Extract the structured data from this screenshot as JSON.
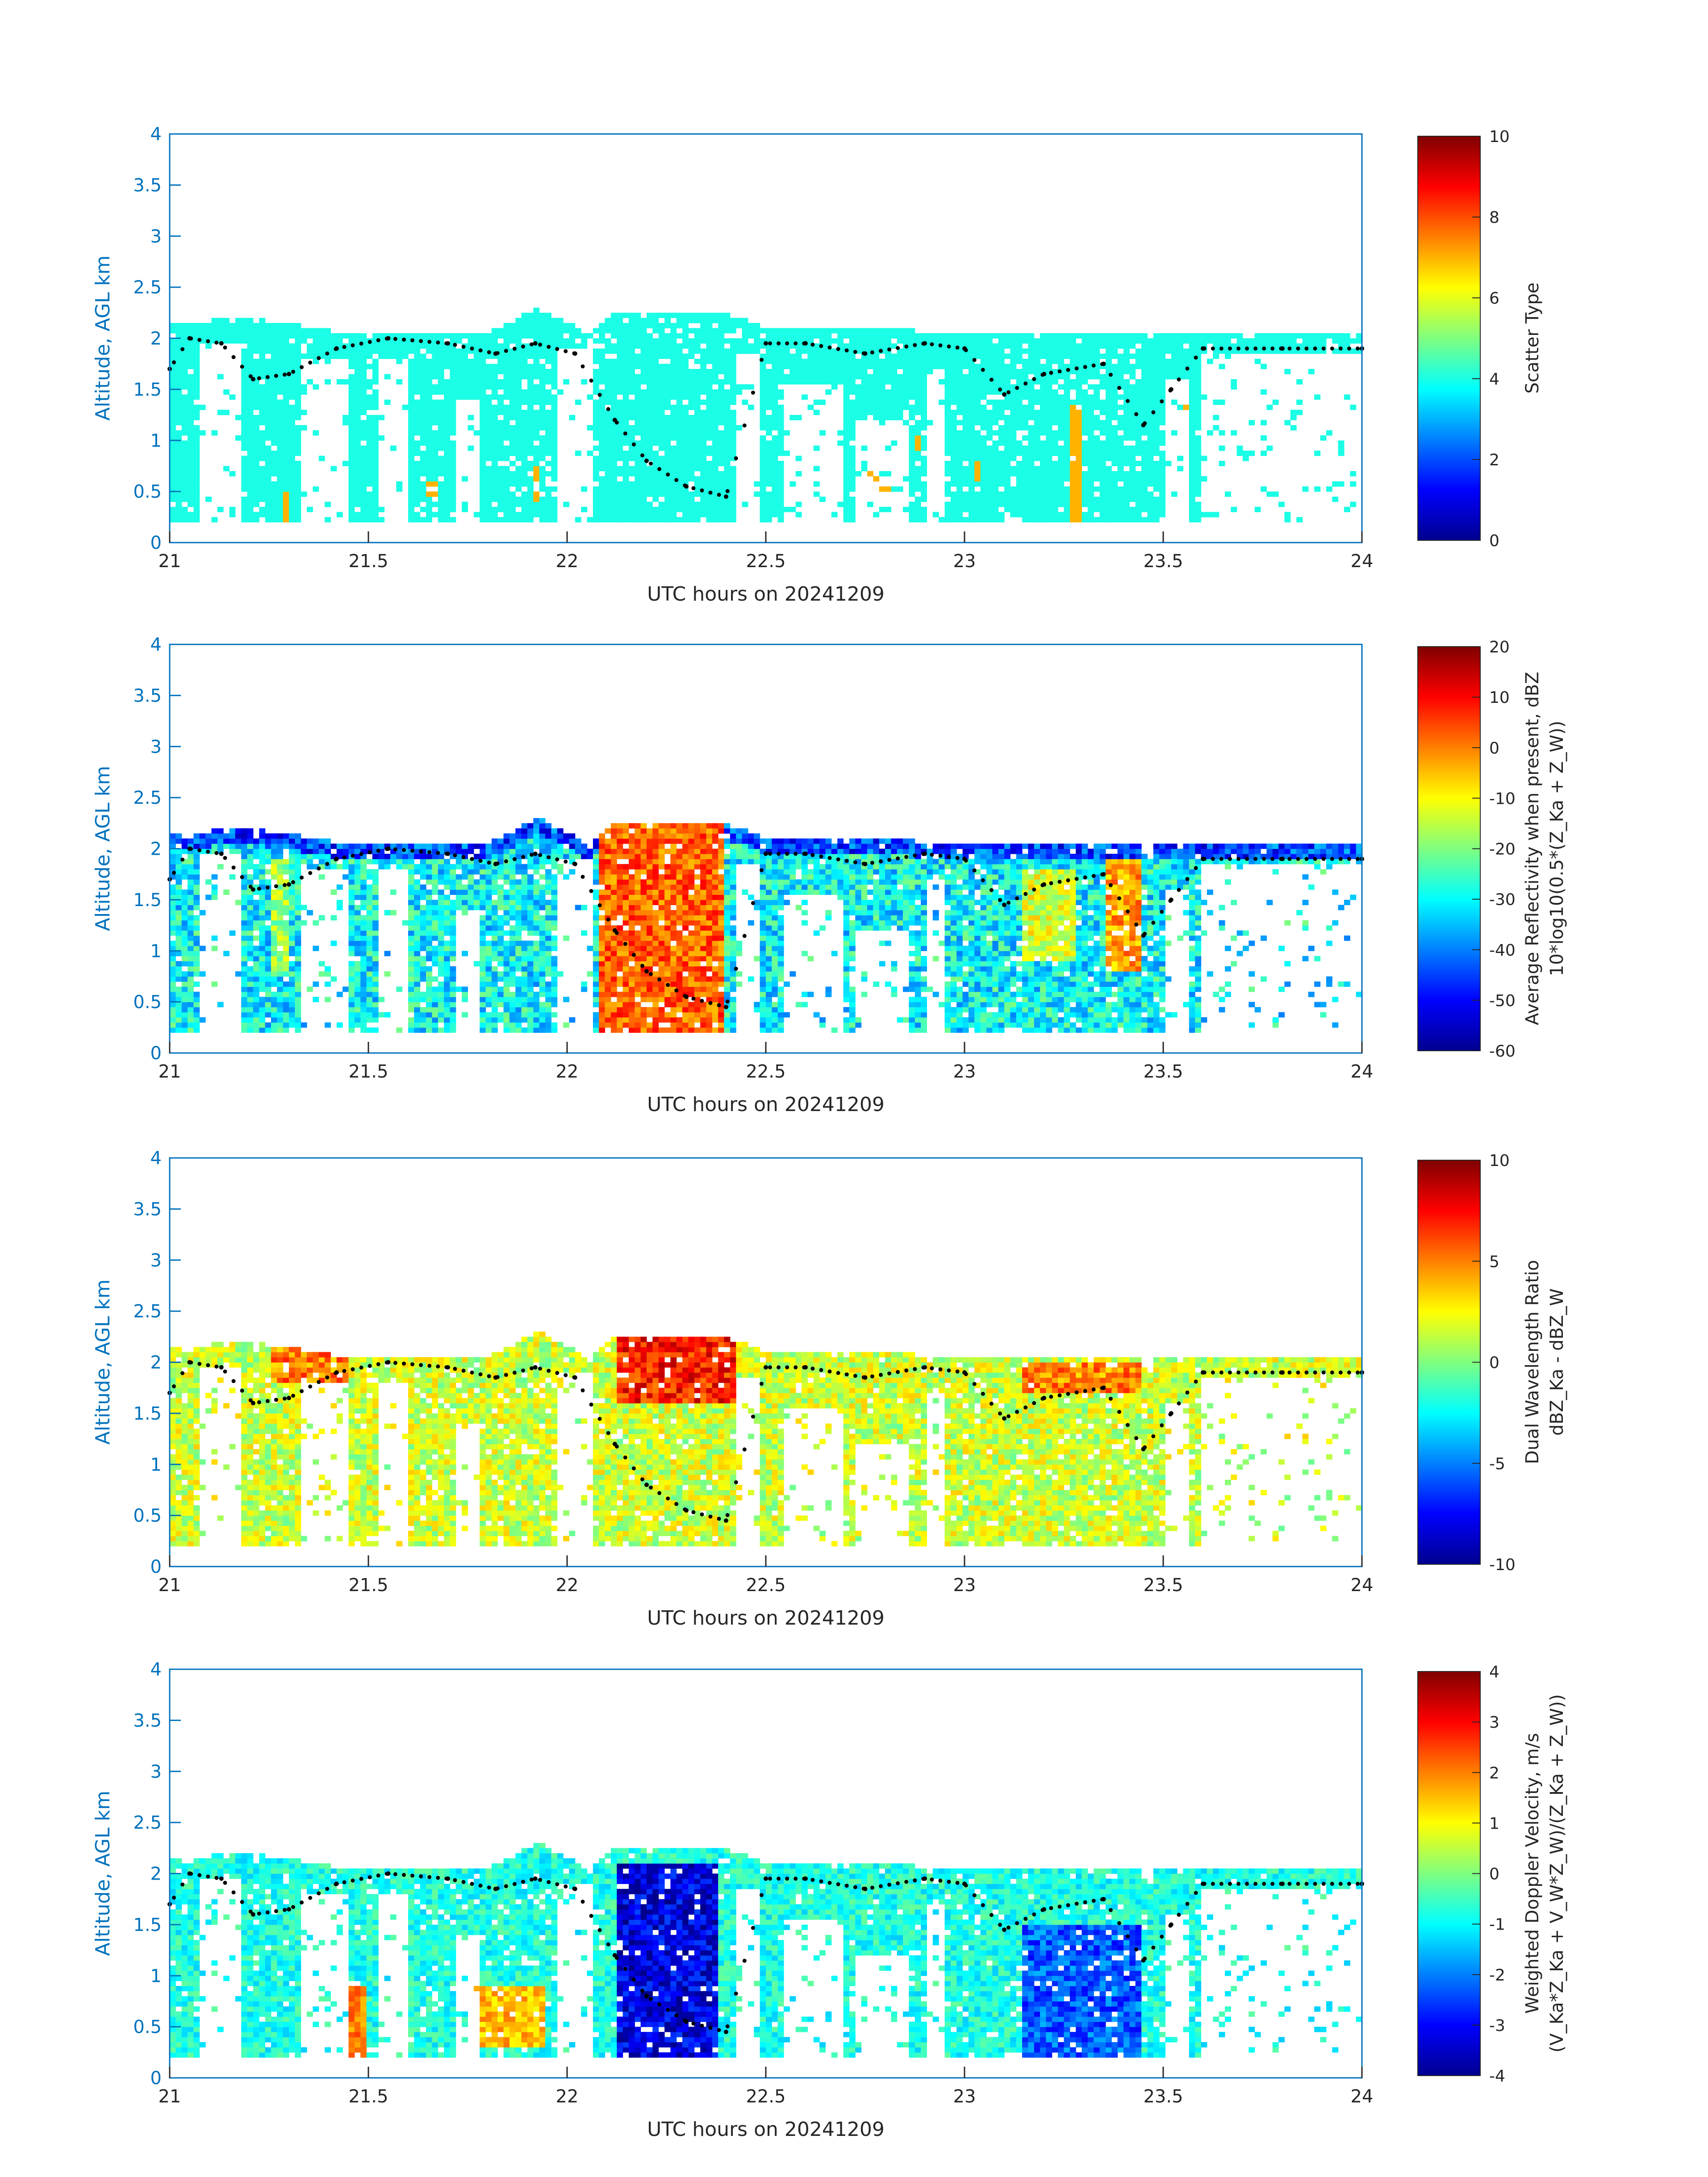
{
  "figure": {
    "axis_color": "#0072BD",
    "colormap": "jet",
    "panels": [
      {
        "id": "scatter_type",
        "xlabel": "UTC hours on 20241209",
        "ylabel": "Altitude, AGL km",
        "xticks": [
          "21",
          "21.5",
          "22",
          "22.5",
          "23",
          "23.5",
          "24"
        ],
        "yticks": [
          "0",
          "0.5",
          "1",
          "1.5",
          "2",
          "2.5",
          "3",
          "3.5",
          "4"
        ],
        "colorbar_label_lines": [
          "Scatter Type"
        ],
        "colorbar_ticks": [
          "0",
          "2",
          "4",
          "6",
          "8",
          "10"
        ]
      },
      {
        "id": "avg_reflectivity",
        "xlabel": "UTC hours on 20241209",
        "ylabel": "Altitude, AGL km",
        "xticks": [
          "21",
          "21.5",
          "22",
          "22.5",
          "23",
          "23.5",
          "24"
        ],
        "yticks": [
          "0",
          "0.5",
          "1",
          "1.5",
          "2",
          "2.5",
          "3",
          "3.5",
          "4"
        ],
        "colorbar_label_lines": [
          "Average Reflectivity when present, dBZ",
          "10*log10(0.5*(Z_Ka + Z_W))"
        ],
        "colorbar_ticks": [
          "-60",
          "-50",
          "-40",
          "-30",
          "-20",
          "-10",
          "0",
          "10",
          "20"
        ]
      },
      {
        "id": "dual_wavelength_ratio",
        "xlabel": "UTC hours on 20241209",
        "ylabel": "Altitude, AGL km",
        "xticks": [
          "21",
          "21.5",
          "22",
          "22.5",
          "23",
          "23.5",
          "24"
        ],
        "yticks": [
          "0",
          "0.5",
          "1",
          "1.5",
          "2",
          "2.5",
          "3",
          "3.5",
          "4"
        ],
        "colorbar_label_lines": [
          "Dual Wavelength Ratio",
          "dBZ_Ka - dBZ_W"
        ],
        "colorbar_ticks": [
          "-10",
          "-5",
          "0",
          "5",
          "10"
        ]
      },
      {
        "id": "weighted_doppler_velocity",
        "xlabel": "UTC hours on 20241209",
        "ylabel": "Altitude, AGL km",
        "xticks": [
          "21",
          "21.5",
          "22",
          "22.5",
          "23",
          "23.5",
          "24"
        ],
        "yticks": [
          "0",
          "0.5",
          "1",
          "1.5",
          "2",
          "2.5",
          "3",
          "3.5",
          "4"
        ],
        "colorbar_label_lines": [
          "Weighted Doppler Velocity, m/s",
          "(V_Ka*Z_Ka + V_W*Z_W)/(Z_Ka + Z_W))"
        ],
        "colorbar_ticks": [
          "-4",
          "-3",
          "-2",
          "-1",
          "0",
          "1",
          "2",
          "3",
          "4"
        ]
      }
    ]
  },
  "chart_data": [
    {
      "type": "heatmap",
      "xlabel": "UTC hours on 20241209",
      "ylabel": "Altitude, AGL km",
      "xlim": [
        21,
        24
      ],
      "ylim": [
        0,
        4
      ],
      "clim": [
        0,
        10
      ],
      "colorbar_label": "Scatter Type",
      "grid": false,
      "cloud_top_km": [
        [
          21.0,
          2.15
        ],
        [
          21.2,
          2.2
        ],
        [
          21.45,
          2.05
        ],
        [
          21.65,
          2.05
        ],
        [
          21.8,
          2.05
        ],
        [
          21.93,
          2.3
        ],
        [
          22.05,
          2.05
        ],
        [
          22.12,
          2.25
        ],
        [
          22.4,
          2.25
        ],
        [
          22.5,
          2.1
        ],
        [
          22.8,
          2.1
        ],
        [
          22.95,
          2.05
        ],
        [
          23.0,
          2.05
        ],
        [
          23.2,
          2.05
        ],
        [
          23.4,
          2.05
        ],
        [
          23.55,
          2.05
        ],
        [
          23.7,
          2.05
        ],
        [
          24.0,
          2.05
        ]
      ],
      "dominant_value": 4,
      "secondary_value_columns": [
        [
          21.29,
          0.2,
          0.5
        ],
        [
          21.44,
          0.35,
          0.55
        ],
        [
          21.66,
          0.45,
          0.6
        ],
        [
          21.92,
          0.4,
          0.75
        ],
        [
          22.03,
          1.05,
          1.2
        ],
        [
          22.46,
          0.35,
          0.55
        ],
        [
          22.59,
          0.4,
          0.55
        ],
        [
          22.65,
          0.7,
          0.8
        ],
        [
          22.77,
          0.6,
          0.8
        ],
        [
          22.8,
          0.45,
          0.6
        ],
        [
          22.88,
          0.9,
          1.05
        ],
        [
          23.03,
          0.6,
          0.8
        ],
        [
          23.28,
          0.2,
          1.35
        ],
        [
          23.56,
          1.3,
          1.35
        ]
      ],
      "mean_path_km": [
        [
          21.0,
          1.7
        ],
        [
          21.05,
          2.0
        ],
        [
          21.13,
          1.95
        ],
        [
          21.21,
          1.6
        ],
        [
          21.3,
          1.65
        ],
        [
          21.42,
          1.9
        ],
        [
          21.55,
          2.0
        ],
        [
          21.7,
          1.95
        ],
        [
          21.82,
          1.85
        ],
        [
          21.92,
          1.95
        ],
        [
          22.02,
          1.85
        ],
        [
          22.12,
          1.2
        ],
        [
          22.2,
          0.8
        ],
        [
          22.3,
          0.55
        ],
        [
          22.4,
          0.45
        ],
        [
          22.5,
          1.95
        ],
        [
          22.6,
          1.95
        ],
        [
          22.75,
          1.85
        ],
        [
          22.9,
          1.95
        ],
        [
          23.0,
          1.9
        ],
        [
          23.1,
          1.45
        ],
        [
          23.2,
          1.65
        ],
        [
          23.35,
          1.75
        ],
        [
          23.45,
          1.15
        ],
        [
          23.52,
          1.5
        ],
        [
          23.6,
          1.9
        ],
        [
          23.8,
          1.9
        ],
        [
          24.0,
          1.9
        ]
      ]
    },
    {
      "type": "heatmap",
      "xlabel": "UTC hours on 20241209",
      "ylabel": "Altitude, AGL km",
      "xlim": [
        21,
        24
      ],
      "ylim": [
        0,
        4
      ],
      "clim": [
        -60,
        20
      ],
      "units": "dBZ",
      "colorbar_label": "Average Reflectivity when present, dBZ 10*log10(0.5*(Z_Ka + Z_W))",
      "grid": false,
      "cores": [
        {
          "t": [
            22.08,
            22.4
          ],
          "z": [
            0.2,
            2.3
          ],
          "peak_dBZ": 10
        },
        {
          "t": [
            23.35,
            23.45
          ],
          "z": [
            0.8,
            1.9
          ],
          "peak_dBZ": 5
        },
        {
          "t": [
            21.25,
            21.3
          ],
          "z": [
            0.8,
            1.9
          ],
          "peak_dBZ": -10
        },
        {
          "t": [
            23.15,
            23.28
          ],
          "z": [
            0.9,
            1.8
          ],
          "peak_dBZ": -5
        }
      ],
      "background_dBZ": -40
    },
    {
      "type": "heatmap",
      "xlabel": "UTC hours on 20241209",
      "ylabel": "Altitude, AGL km",
      "xlim": [
        21,
        24
      ],
      "ylim": [
        0,
        4
      ],
      "clim": [
        -10,
        10
      ],
      "units": "dB",
      "colorbar_label": "Dual Wavelength Ratio dBZ_Ka - dBZ_W",
      "grid": false,
      "typical_dB": 1.5,
      "high_values": [
        {
          "t": [
            22.12,
            22.42
          ],
          "z": [
            1.6,
            2.25
          ],
          "dB": 7
        },
        {
          "t": [
            21.25,
            21.45
          ],
          "z": [
            1.8,
            2.2
          ],
          "dB": 5
        },
        {
          "t": [
            23.15,
            23.45
          ],
          "z": [
            1.7,
            2.0
          ],
          "dB": 5
        }
      ]
    },
    {
      "type": "heatmap",
      "xlabel": "UTC hours on 20241209",
      "ylabel": "Altitude, AGL km",
      "xlim": [
        21,
        24
      ],
      "ylim": [
        0,
        4
      ],
      "clim": [
        -4,
        4
      ],
      "units": "m/s",
      "colorbar_label": "Weighted Doppler Velocity, m/s (V_Ka*Z_Ka + V_W*Z_W)/(Z_Ka + Z_W))",
      "grid": false,
      "typical_m_s": -0.8,
      "downdraft_cores": [
        {
          "t": [
            22.12,
            22.38
          ],
          "z": [
            0.2,
            2.1
          ],
          "m_s": -3.2
        },
        {
          "t": [
            23.15,
            23.45
          ],
          "z": [
            0.2,
            1.5
          ],
          "m_s": -2.3
        }
      ],
      "positive_patches": [
        {
          "t": [
            21.75,
            21.95
          ],
          "z": [
            0.3,
            0.9
          ],
          "m_s": 1.5
        },
        {
          "t": [
            21.45,
            21.5
          ],
          "z": [
            0.2,
            0.9
          ],
          "m_s": 2.0
        }
      ]
    }
  ]
}
